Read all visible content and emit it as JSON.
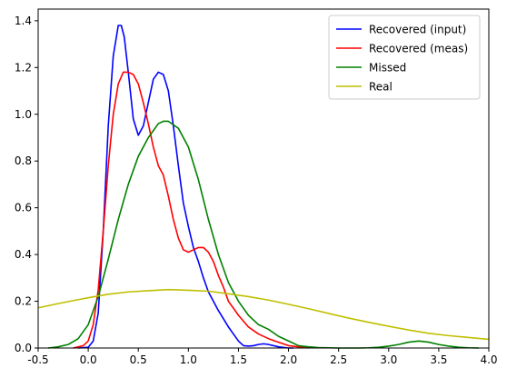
{
  "chart_data": {
    "type": "line",
    "title": "",
    "xlabel": "",
    "ylabel": "",
    "xlim": [
      -0.5,
      4.0
    ],
    "ylim": [
      0,
      1.45
    ],
    "xticks": [
      "-0.5",
      "0.0",
      "0.5",
      "1.0",
      "1.5",
      "2.0",
      "2.5",
      "3.0",
      "3.5",
      "4.0"
    ],
    "yticks": [
      "0.0",
      "0.2",
      "0.4",
      "0.6",
      "0.8",
      "1.0",
      "1.2",
      "1.4"
    ],
    "grid": false,
    "legend_position": "top-right",
    "series": [
      {
        "name": "Recovered (input)",
        "color": "#0000ff",
        "x": [
          -0.1,
          0.0,
          0.05,
          0.1,
          0.15,
          0.2,
          0.25,
          0.3,
          0.33,
          0.36,
          0.4,
          0.45,
          0.5,
          0.55,
          0.6,
          0.65,
          0.7,
          0.75,
          0.8,
          0.85,
          0.9,
          0.95,
          1.0,
          1.05,
          1.1,
          1.15,
          1.2,
          1.3,
          1.4,
          1.5,
          1.55,
          1.6,
          1.65,
          1.7,
          1.75,
          1.8,
          1.9,
          2.0,
          2.05
        ],
        "y": [
          0.0,
          0.003,
          0.03,
          0.15,
          0.5,
          0.95,
          1.25,
          1.38,
          1.38,
          1.33,
          1.18,
          0.98,
          0.91,
          0.95,
          1.05,
          1.15,
          1.18,
          1.17,
          1.1,
          0.95,
          0.78,
          0.62,
          0.52,
          0.43,
          0.37,
          0.3,
          0.24,
          0.16,
          0.09,
          0.03,
          0.01,
          0.008,
          0.01,
          0.015,
          0.018,
          0.015,
          0.005,
          0.0,
          0.0
        ]
      },
      {
        "name": "Recovered (meas)",
        "color": "#ff0000",
        "x": [
          -0.15,
          -0.05,
          0.0,
          0.05,
          0.1,
          0.15,
          0.2,
          0.25,
          0.3,
          0.35,
          0.4,
          0.45,
          0.5,
          0.55,
          0.6,
          0.65,
          0.7,
          0.75,
          0.8,
          0.85,
          0.9,
          0.95,
          1.0,
          1.05,
          1.1,
          1.15,
          1.2,
          1.25,
          1.3,
          1.35,
          1.4,
          1.5,
          1.6,
          1.7,
          1.8,
          1.9,
          2.0,
          2.1,
          2.2
        ],
        "y": [
          0.0,
          0.01,
          0.03,
          0.1,
          0.25,
          0.5,
          0.78,
          1.0,
          1.13,
          1.18,
          1.18,
          1.17,
          1.13,
          1.05,
          0.96,
          0.86,
          0.78,
          0.74,
          0.65,
          0.55,
          0.47,
          0.42,
          0.41,
          0.42,
          0.43,
          0.43,
          0.41,
          0.37,
          0.31,
          0.26,
          0.2,
          0.14,
          0.09,
          0.06,
          0.04,
          0.025,
          0.01,
          0.005,
          0.0
        ]
      },
      {
        "name": "Missed",
        "color": "#008000",
        "x": [
          -0.4,
          -0.3,
          -0.2,
          -0.1,
          0.0,
          0.1,
          0.2,
          0.3,
          0.4,
          0.5,
          0.6,
          0.7,
          0.75,
          0.8,
          0.9,
          1.0,
          1.1,
          1.2,
          1.3,
          1.4,
          1.5,
          1.6,
          1.7,
          1.8,
          1.9,
          2.0,
          2.1,
          2.2,
          2.3,
          2.4,
          2.5,
          2.6,
          2.7,
          2.8,
          2.9,
          3.0,
          3.1,
          3.2,
          3.3,
          3.4,
          3.5,
          3.6,
          3.7,
          3.8,
          3.9
        ],
        "y": [
          0.0,
          0.005,
          0.015,
          0.04,
          0.1,
          0.22,
          0.38,
          0.55,
          0.7,
          0.82,
          0.9,
          0.96,
          0.97,
          0.97,
          0.94,
          0.86,
          0.72,
          0.55,
          0.4,
          0.28,
          0.2,
          0.14,
          0.1,
          0.08,
          0.05,
          0.03,
          0.01,
          0.005,
          0.002,
          0.001,
          0.0,
          0.0,
          0.0,
          0.001,
          0.003,
          0.008,
          0.015,
          0.025,
          0.03,
          0.025,
          0.015,
          0.008,
          0.003,
          0.001,
          0.0
        ]
      },
      {
        "name": "Real",
        "color": "#bfbf00",
        "x": [
          -0.5,
          -0.3,
          -0.1,
          0.0,
          0.2,
          0.4,
          0.6,
          0.8,
          1.0,
          1.2,
          1.4,
          1.6,
          1.8,
          2.0,
          2.2,
          2.4,
          2.6,
          2.8,
          3.0,
          3.2,
          3.4,
          3.6,
          3.8,
          4.0
        ],
        "y": [
          0.172,
          0.19,
          0.207,
          0.215,
          0.23,
          0.24,
          0.245,
          0.25,
          0.247,
          0.243,
          0.232,
          0.22,
          0.205,
          0.187,
          0.168,
          0.148,
          0.128,
          0.11,
          0.093,
          0.077,
          0.063,
          0.053,
          0.045,
          0.037
        ]
      }
    ]
  }
}
